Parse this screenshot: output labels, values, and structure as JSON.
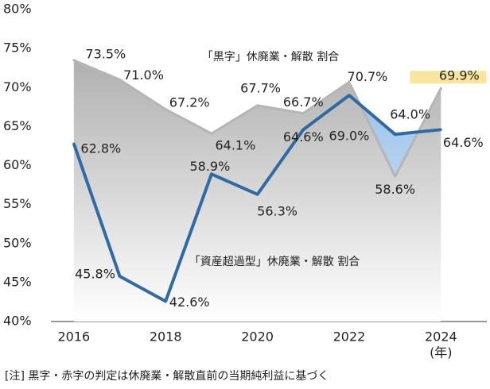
{
  "chart_data": {
    "type": "line",
    "x": [
      2016,
      2017,
      2018,
      2019,
      2020,
      2021,
      2022,
      2023,
      2024
    ],
    "xlim": [
      2015.5,
      2025
    ],
    "xticks": [
      2016,
      2018,
      2020,
      2022,
      2024
    ],
    "x_unit": "(年)",
    "ylim": [
      40,
      80
    ],
    "yticks": [
      {
        "value": 40,
        "label": "40%"
      },
      {
        "value": 45,
        "label": "45%"
      },
      {
        "value": 50,
        "label": "50%"
      },
      {
        "value": 55,
        "label": "55%"
      },
      {
        "value": 60,
        "label": "60%"
      },
      {
        "value": 65,
        "label": "65%"
      },
      {
        "value": 70,
        "label": "70%"
      },
      {
        "value": 75,
        "label": "75%"
      },
      {
        "value": 80,
        "label": "80%"
      }
    ],
    "series": [
      {
        "name": "「黒字」休廃業・解散 割合",
        "color": "#b5b5b5",
        "values": [
          73.5,
          71.0,
          67.2,
          64.1,
          67.7,
          66.7,
          70.7,
          58.6,
          69.9
        ],
        "value_labels": [
          "73.5%",
          "71.0%",
          "67.2%",
          "64.1%",
          "67.7%",
          "66.7%",
          "70.7%",
          "58.6%",
          "69.9%"
        ]
      },
      {
        "name": "「資産超過型」休廃業・解散 割合",
        "color": "#2f6aa3",
        "values": [
          62.8,
          45.8,
          42.6,
          58.9,
          56.3,
          64.6,
          69.0,
          64.0,
          64.6
        ],
        "value_labels": [
          "62.8%",
          "45.8%",
          "42.6%",
          "58.9%",
          "56.3%",
          "64.6%",
          "69.0%",
          "64.0%",
          "64.6%"
        ]
      }
    ],
    "footnote": "[注] 黒字・赤字の判定は休廃業・解散直前の当期純利益に基づく"
  }
}
